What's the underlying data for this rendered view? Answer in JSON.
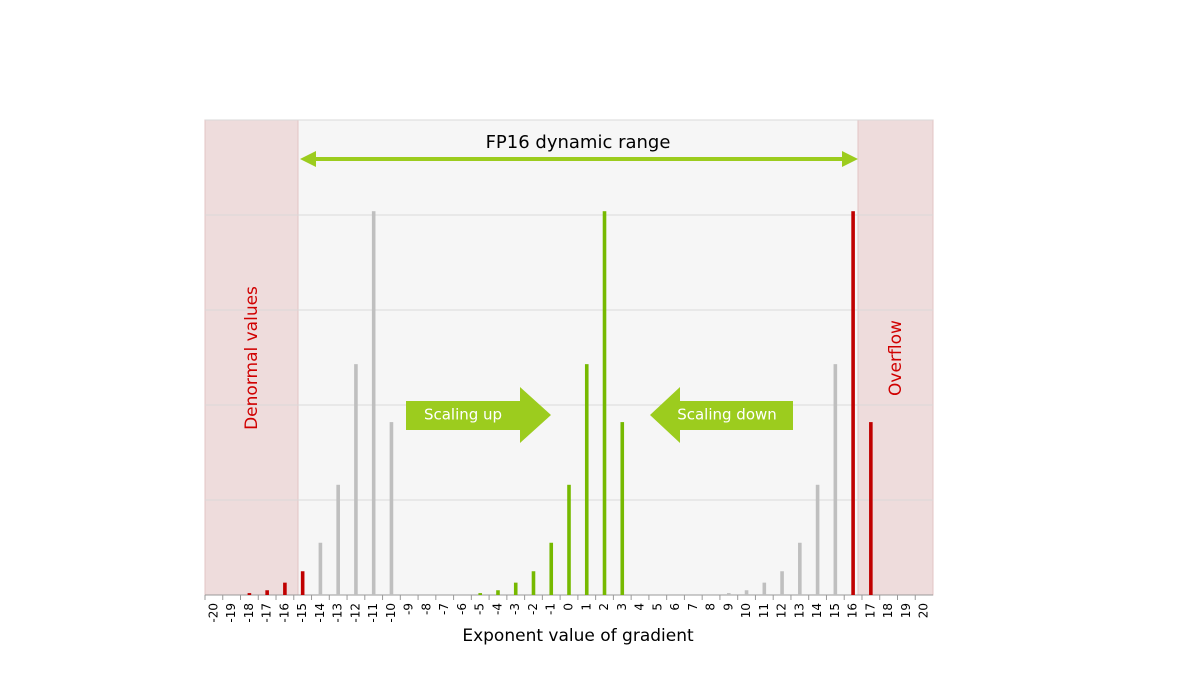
{
  "chart_data": {
    "type": "bar",
    "xlabel": "Exponent value of gradient",
    "annotations": {
      "dynamic_range": "FP16 dynamic range",
      "denormal": "Denormal values",
      "overflow": "Overflow",
      "scaling_up": "Scaling up",
      "scaling_down": "Scaling down"
    },
    "categories": [
      "-20",
      "-19",
      "-18",
      "-17",
      "-16",
      "-15",
      "-14",
      "-13",
      "-12",
      "-11",
      "-10",
      "-9",
      "-8",
      "-7",
      "-6",
      "-5",
      "-4",
      "-3",
      "-2",
      "-1",
      "0",
      "1",
      "2",
      "3",
      "4",
      "5",
      "6",
      "7",
      "8",
      "9",
      "10",
      "11",
      "12",
      "13",
      "14",
      "15",
      "16",
      "17",
      "18",
      "19",
      "20"
    ],
    "values": [
      0,
      0,
      0.02,
      0.05,
      0.13,
      0.25,
      0.55,
      1.16,
      2.43,
      4.04,
      1.82,
      0,
      0,
      0,
      0,
      0.02,
      0.05,
      0.13,
      0.25,
      0.55,
      1.16,
      2.43,
      4.04,
      1.82,
      0,
      0,
      0,
      0,
      0,
      0.02,
      0.05,
      0.13,
      0.25,
      0.55,
      1.16,
      2.43,
      4.04,
      1.82,
      0,
      0,
      0
    ],
    "colors": [
      "#c00000",
      "#c00000",
      "#c00000",
      "#c00000",
      "#c00000",
      "#c00000",
      "#bfbfbf",
      "#bfbfbf",
      "#bfbfbf",
      "#bfbfbf",
      "#bfbfbf",
      "#bfbfbf",
      "#bfbfbf",
      "#bfbfbf",
      "#bfbfbf",
      "#76b900",
      "#76b900",
      "#76b900",
      "#76b900",
      "#76b900",
      "#76b900",
      "#76b900",
      "#76b900",
      "#76b900",
      "#bfbfbf",
      "#bfbfbf",
      "#bfbfbf",
      "#bfbfbf",
      "#bfbfbf",
      "#bfbfbf",
      "#bfbfbf",
      "#bfbfbf",
      "#bfbfbf",
      "#bfbfbf",
      "#bfbfbf",
      "#bfbfbf",
      "#c00000",
      "#c00000",
      "#c00000",
      "#c00000",
      "#c00000"
    ],
    "ylim": [
      0,
      5
    ],
    "yticks": [
      0,
      1,
      2,
      3,
      4,
      5
    ],
    "grid": true
  }
}
